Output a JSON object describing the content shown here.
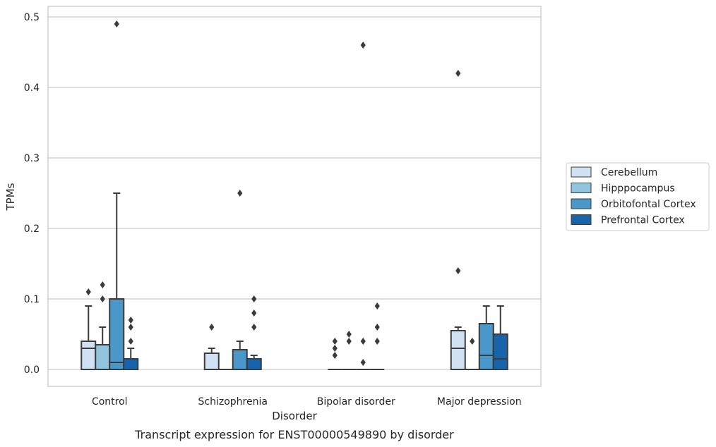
{
  "chart_data": {
    "type": "box",
    "title": "",
    "caption": "Transcript expression for ENST00000549890 by disorder",
    "xlabel": "Disorder",
    "ylabel": "TPMs",
    "ylim": [
      -0.024,
      0.515
    ],
    "yticks": [
      0.0,
      0.1,
      0.2,
      0.3,
      0.4,
      0.5
    ],
    "ytick_labels": [
      "0.0",
      "0.1",
      "0.2",
      "0.3",
      "0.4",
      "0.5"
    ],
    "grid": true,
    "legend_placement": "right",
    "categories": [
      "Control",
      "Schizophrenia",
      "Bipolar disorder",
      "Major depression"
    ],
    "series": [
      {
        "name": "Cerebellum",
        "color": "#cfe1f2",
        "boxes": [
          {
            "q1": 0.0,
            "median": 0.03,
            "q3": 0.04,
            "whisker_low": 0.0,
            "whisker_high": 0.09,
            "outliers": [
              0.11
            ]
          },
          {
            "q1": 0.0,
            "median": 0.0,
            "q3": 0.023,
            "whisker_low": 0.0,
            "whisker_high": 0.03,
            "outliers": [
              0.06
            ]
          },
          {
            "q1": 0.0,
            "median": 0.0,
            "q3": 0.0,
            "whisker_low": 0.0,
            "whisker_high": 0.0,
            "outliers": [
              0.02,
              0.03,
              0.04
            ]
          },
          {
            "q1": 0.0,
            "median": 0.03,
            "q3": 0.055,
            "whisker_low": 0.0,
            "whisker_high": 0.06,
            "outliers": [
              0.14,
              0.42
            ]
          }
        ]
      },
      {
        "name": "Hipppocampus",
        "color": "#93c4de",
        "boxes": [
          {
            "q1": 0.0,
            "median": 0.0,
            "q3": 0.035,
            "whisker_low": 0.0,
            "whisker_high": 0.06,
            "outliers": [
              0.1,
              0.12
            ]
          },
          {
            "q1": 0.0,
            "median": 0.0,
            "q3": 0.0,
            "whisker_low": 0.0,
            "whisker_high": 0.0,
            "outliers": []
          },
          {
            "q1": 0.0,
            "median": 0.0,
            "q3": 0.0,
            "whisker_low": 0.0,
            "whisker_high": 0.0,
            "outliers": [
              0.04,
              0.05
            ]
          },
          {
            "q1": 0.0,
            "median": 0.0,
            "q3": 0.0,
            "whisker_low": 0.0,
            "whisker_high": 0.0,
            "outliers": [
              0.04
            ]
          }
        ]
      },
      {
        "name": "Orbitofontal Cortex",
        "color": "#4a98c9",
        "boxes": [
          {
            "q1": 0.0,
            "median": 0.01,
            "q3": 0.1,
            "whisker_low": 0.0,
            "whisker_high": 0.25,
            "outliers": [
              0.49
            ]
          },
          {
            "q1": 0.0,
            "median": 0.0,
            "q3": 0.028,
            "whisker_low": 0.0,
            "whisker_high": 0.04,
            "outliers": [
              0.25
            ]
          },
          {
            "q1": 0.0,
            "median": 0.0,
            "q3": 0.0,
            "whisker_low": 0.0,
            "whisker_high": 0.0,
            "outliers": [
              0.01,
              0.04,
              0.46
            ]
          },
          {
            "q1": 0.0,
            "median": 0.02,
            "q3": 0.065,
            "whisker_low": 0.0,
            "whisker_high": 0.09,
            "outliers": []
          }
        ]
      },
      {
        "name": "Prefrontal Cortex",
        "color": "#1764ab",
        "boxes": [
          {
            "q1": 0.0,
            "median": 0.0,
            "q3": 0.015,
            "whisker_low": 0.0,
            "whisker_high": 0.03,
            "outliers": [
              0.04,
              0.06,
              0.07
            ]
          },
          {
            "q1": 0.0,
            "median": 0.0,
            "q3": 0.015,
            "whisker_low": 0.0,
            "whisker_high": 0.02,
            "outliers": [
              0.06,
              0.08,
              0.1
            ]
          },
          {
            "q1": 0.0,
            "median": 0.0,
            "q3": 0.0,
            "whisker_low": 0.0,
            "whisker_high": 0.0,
            "outliers": [
              0.04,
              0.06,
              0.09
            ]
          },
          {
            "q1": 0.0,
            "median": 0.015,
            "q3": 0.05,
            "whisker_low": 0.0,
            "whisker_high": 0.09,
            "outliers": []
          }
        ]
      }
    ]
  }
}
